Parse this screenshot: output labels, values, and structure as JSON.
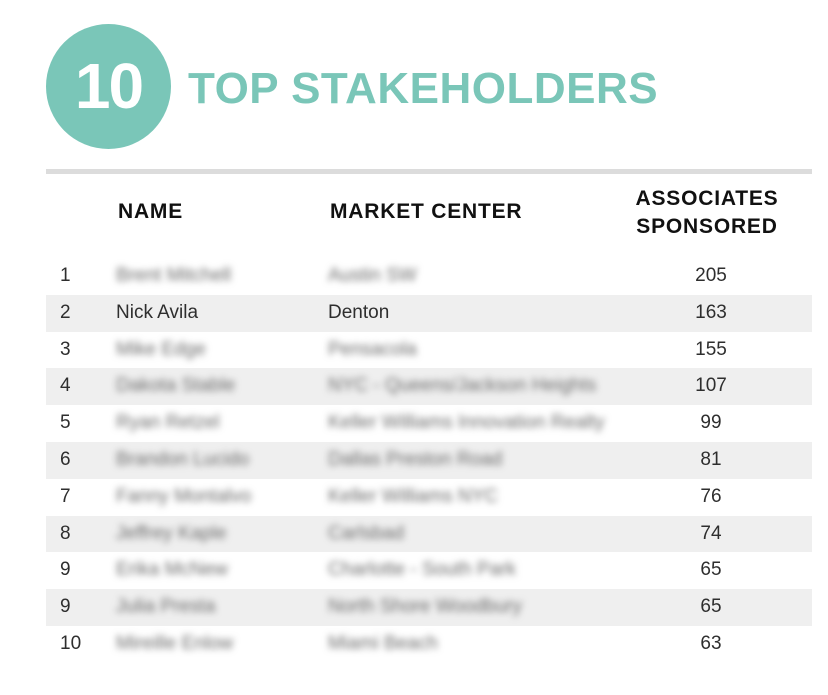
{
  "header": {
    "badge_number": "10",
    "title": "TOP STAKEHOLDERS",
    "accent_color": "#7ac6b8"
  },
  "table": {
    "columns": {
      "name": "NAME",
      "market_center": "MARKET CENTER",
      "associates_line1": "ASSOCIATES",
      "associates_line2": "SPONSORED"
    },
    "rows": [
      {
        "rank": "1",
        "name": "Brent Mitchell",
        "market": "Austin SW",
        "count": "205",
        "blurred": true
      },
      {
        "rank": "2",
        "name": "Nick Avila",
        "market": "Denton",
        "count": "163",
        "blurred": false
      },
      {
        "rank": "3",
        "name": "Mike Edge",
        "market": "Pensacola",
        "count": "155",
        "blurred": true
      },
      {
        "rank": "4",
        "name": "Dakota Stable",
        "market": "NYC - Queens/Jackson Heights",
        "count": "107",
        "blurred": true
      },
      {
        "rank": "5",
        "name": "Ryan Retzel",
        "market": "Keller Williams Innovation Realty",
        "count": "99",
        "blurred": true
      },
      {
        "rank": "6",
        "name": "Brandon Lucido",
        "market": "Dallas Preston Road",
        "count": "81",
        "blurred": true
      },
      {
        "rank": "7",
        "name": "Fanny Montalvo",
        "market": "Keller Williams NYC",
        "count": "76",
        "blurred": true
      },
      {
        "rank": "8",
        "name": "Jeffrey Kaple",
        "market": "Carlsbad",
        "count": "74",
        "blurred": true
      },
      {
        "rank": "9",
        "name": "Erika McNew",
        "market": "Charlotte - South Park",
        "count": "65",
        "blurred": true
      },
      {
        "rank": "9",
        "name": "Julia Presta",
        "market": "North Shore Woodbury",
        "count": "65",
        "blurred": true
      },
      {
        "rank": "10",
        "name": "Mireille Enlow",
        "market": "Miami Beach",
        "count": "63",
        "blurred": true
      }
    ]
  }
}
